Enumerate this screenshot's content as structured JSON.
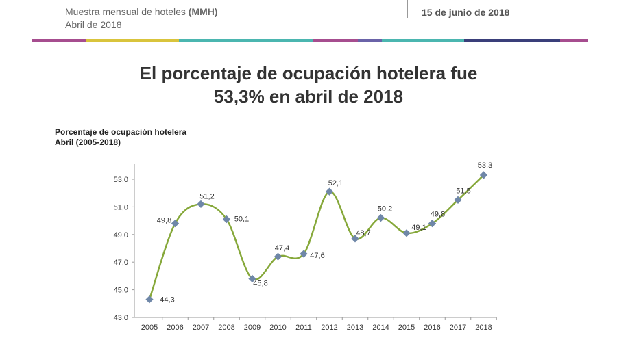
{
  "header": {
    "publication_prefix": "Muestra mensual de hoteles ",
    "publication_code": "(MMH)",
    "period": "Abril de 2018",
    "date": "15 de junio de 2018"
  },
  "colors": {
    "header_segments": [
      "#a64d8f",
      "#d9c43c",
      "#4bb6b0",
      "#4bb6b0",
      "#a64d8f",
      "#6a63a8",
      "#4bb6b0",
      "#3a3f7a",
      "#a64d8f"
    ],
    "line": "#86a83a",
    "marker": "#6f87a8"
  },
  "headline": {
    "line1": "El porcentaje de ocupación hotelera fue",
    "line2": "53,3% en abril de 2018"
  },
  "chart_data": {
    "type": "line",
    "title": "Porcentaje de ocupación hotelera",
    "subtitle": "Abril (2005-2018)",
    "categories": [
      "2005",
      "2006",
      "2007",
      "2008",
      "2009",
      "2010",
      "2011",
      "2012",
      "2013",
      "2014",
      "2015",
      "2016",
      "2017",
      "2018"
    ],
    "values": [
      44.3,
      49.8,
      51.2,
      50.1,
      45.8,
      47.4,
      47.6,
      52.1,
      48.7,
      50.2,
      49.1,
      49.8,
      51.5,
      53.3
    ],
    "value_labels": [
      "44,3",
      "49,8",
      "51,2",
      "50,1",
      "45,8",
      "47,4",
      "47,6",
      "52,1",
      "48,7",
      "50,2",
      "49,1",
      "49,8",
      "51,5",
      "53,3"
    ],
    "yticks": [
      "43,0",
      "45,0",
      "47,0",
      "49,0",
      "51,0",
      "53,0"
    ],
    "ytick_values": [
      43,
      45,
      47,
      49,
      51,
      53
    ],
    "ylim": [
      43,
      54
    ],
    "smoothed": true,
    "grid": false
  }
}
